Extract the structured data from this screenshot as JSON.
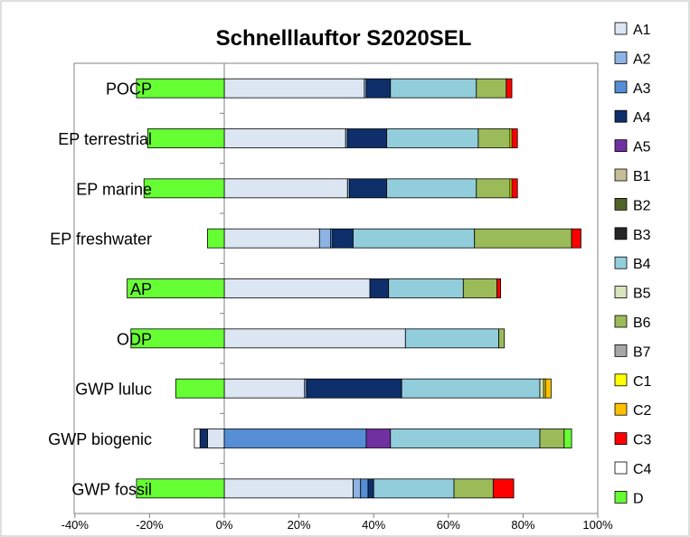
{
  "chart_data": {
    "type": "bar",
    "orientation": "horizontal",
    "stacked": true,
    "title": "Schnelllauftor  S2020SEL",
    "xlabel": "",
    "ylabel": "",
    "xlim": [
      -0.4,
      1.0
    ],
    "x_ticks": [
      "-40%",
      "-20%",
      "0%",
      "20%",
      "40%",
      "60%",
      "80%",
      "100%"
    ],
    "x_tick_values": [
      -0.4,
      -0.2,
      0,
      0.2,
      0.4,
      0.6,
      0.8,
      1.0
    ],
    "grid": false,
    "legend_position": "right",
    "categories": [
      "GWP fossil",
      "GWP biogenic",
      "GWP luluc",
      "ODP",
      "AP",
      "EP freshwater",
      "EP marine",
      "EP terrestrial",
      "POCP"
    ],
    "series": [
      {
        "name": "A1",
        "color": "#dce6f2",
        "values": [
          0.345,
          -0.045,
          0.215,
          0.485,
          0.39,
          0.255,
          0.33,
          0.325,
          0.375
        ]
      },
      {
        "name": "A2",
        "color": "#8db4e2",
        "values": [
          0.02,
          0,
          0.005,
          0,
          0,
          0.03,
          0.005,
          0.005,
          0.005
        ]
      },
      {
        "name": "A3",
        "color": "#558ed5",
        "values": [
          0.02,
          0.38,
          0,
          0,
          0,
          0.005,
          0,
          0,
          0
        ]
      },
      {
        "name": "A4",
        "color": "#0f2f6b",
        "values": [
          0.015,
          -0.02,
          0.255,
          0,
          0.05,
          0.055,
          0.1,
          0.105,
          0.065
        ]
      },
      {
        "name": "A5",
        "color": "#7030a0",
        "values": [
          0,
          0.065,
          0,
          0,
          0,
          0,
          0,
          0,
          0
        ]
      },
      {
        "name": "B1",
        "color": "#c4bd97",
        "values": [
          0,
          0,
          0,
          0,
          0,
          0,
          0,
          0,
          0
        ]
      },
      {
        "name": "B2",
        "color": "#4f6228",
        "values": [
          0,
          0,
          0,
          0,
          0,
          0,
          0,
          0,
          0
        ]
      },
      {
        "name": "B3",
        "color": "#262626",
        "values": [
          0,
          0,
          0,
          0,
          0,
          0,
          0,
          0,
          0
        ]
      },
      {
        "name": "B4",
        "color": "#92cddc",
        "values": [
          0.215,
          0.4,
          0.37,
          0.25,
          0.2,
          0.325,
          0.24,
          0.245,
          0.23
        ]
      },
      {
        "name": "B5",
        "color": "#d7e4bc",
        "values": [
          0,
          0,
          0.01,
          0,
          0,
          0,
          0,
          0,
          0
        ]
      },
      {
        "name": "B6",
        "color": "#9bbb59",
        "values": [
          0.105,
          0.065,
          0,
          0.015,
          0.09,
          0.26,
          0.09,
          0.085,
          0.08
        ]
      },
      {
        "name": "B7",
        "color": "#a6a6a6",
        "values": [
          0,
          0,
          0,
          0,
          0,
          0,
          0,
          0,
          0
        ]
      },
      {
        "name": "C1",
        "color": "#ffff00",
        "values": [
          0,
          0,
          0.005,
          0,
          0,
          0,
          0.005,
          0.005,
          0
        ]
      },
      {
        "name": "C2",
        "color": "#ffc000",
        "values": [
          0,
          0,
          0.015,
          0,
          0,
          0,
          0,
          0,
          0
        ]
      },
      {
        "name": "C3",
        "color": "#ff0000",
        "values": [
          0.055,
          0,
          0,
          0,
          0.01,
          0.025,
          0.015,
          0.015,
          0.015
        ]
      },
      {
        "name": "C4",
        "color": "#ffffff",
        "values": [
          0,
          -0.015,
          0,
          0,
          0,
          0,
          0,
          0,
          0
        ]
      },
      {
        "name": "D",
        "color": "#66ff33",
        "values": [
          -0.235,
          0.02,
          -0.13,
          -0.25,
          -0.26,
          -0.045,
          -0.215,
          -0.205,
          -0.235
        ]
      }
    ]
  }
}
